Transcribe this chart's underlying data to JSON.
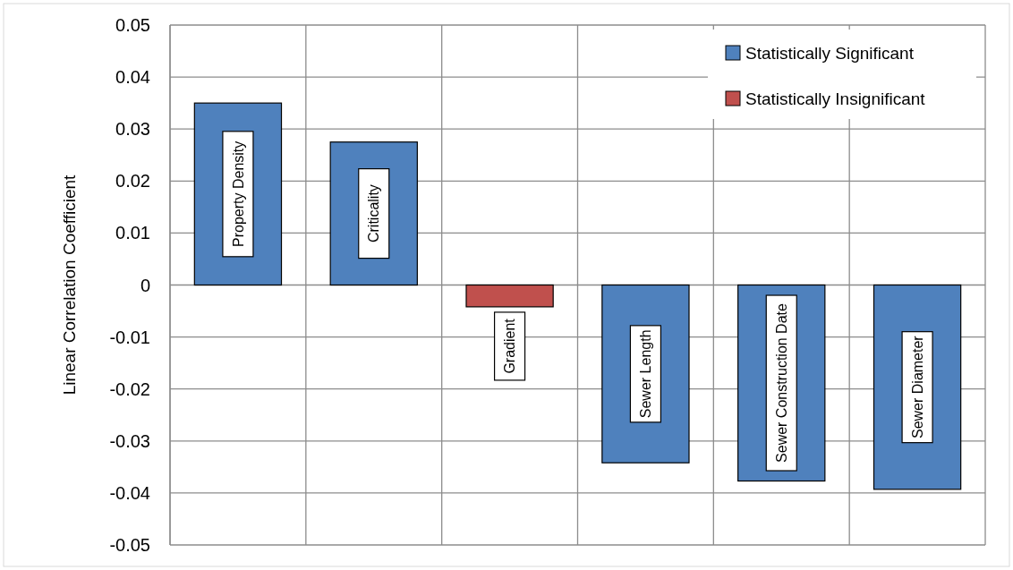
{
  "chart_data": {
    "type": "bar",
    "ylabel": "Linear Correlation Coefficient",
    "categories": [
      "Property Density",
      "Criticality",
      "Gradient",
      "Sewer Length",
      "Sewer Construction Date",
      "Sewer Diameter"
    ],
    "series": [
      {
        "name": "Statistically Significant",
        "color": "#4f81bd",
        "values": [
          0.035,
          0.0275,
          null,
          -0.0342,
          -0.0377,
          -0.0393
        ]
      },
      {
        "name": "Statistically Insignificant",
        "color": "#c0504d",
        "values": [
          null,
          null,
          -0.0042,
          null,
          null,
          null
        ]
      }
    ],
    "ylim": [
      -0.05,
      0.05
    ],
    "yticks": [
      -0.05,
      -0.04,
      -0.03,
      -0.02,
      -0.01,
      0,
      0.01,
      0.02,
      0.03,
      0.04,
      0.05
    ],
    "grid": true,
    "legend": "top right"
  }
}
